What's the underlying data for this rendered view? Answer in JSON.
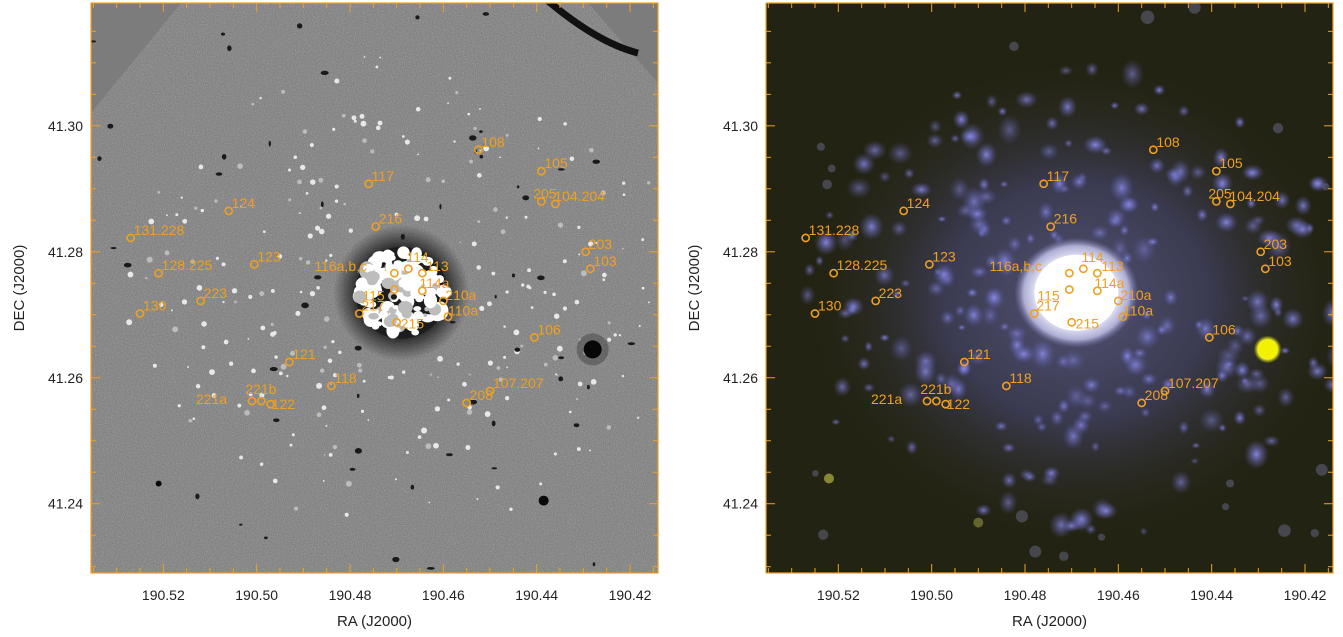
{
  "figure": {
    "xlabel": "RA (J2000)",
    "ylabel": "DEC (J2000)",
    "xticks": [
      "190.52",
      "190.50",
      "190.48",
      "190.46",
      "190.44",
      "190.42"
    ],
    "yticks": [
      "41.30",
      "41.28",
      "41.26",
      "41.24"
    ],
    "marker_color": "#f0a020",
    "frame_color": "#f0a020"
  },
  "panels": [
    {
      "name": "grayscale-difference-image",
      "style": "gray"
    },
    {
      "name": "color-composite-image",
      "style": "color"
    }
  ],
  "sources": [
    {
      "label": "108",
      "ra": 190.4525,
      "dec": 41.2962
    },
    {
      "label": "105",
      "ra": 190.439,
      "dec": 41.2928
    },
    {
      "label": "117",
      "ra": 190.476,
      "dec": 41.2908
    },
    {
      "label": "205",
      "ra": 190.439,
      "dec": 41.288
    },
    {
      "label": "104.204",
      "ra": 190.436,
      "dec": 41.2876
    },
    {
      "label": "124",
      "ra": 190.506,
      "dec": 41.2865
    },
    {
      "label": "216",
      "ra": 190.4745,
      "dec": 41.284
    },
    {
      "label": "131.228",
      "ra": 190.527,
      "dec": 41.2822
    },
    {
      "label": "203",
      "ra": 190.4295,
      "dec": 41.28
    },
    {
      "label": "123",
      "ra": 190.5005,
      "dec": 41.278
    },
    {
      "label": "103",
      "ra": 190.4285,
      "dec": 41.2773
    },
    {
      "label": "128.225",
      "ra": 190.521,
      "dec": 41.2766
    },
    {
      "label": "116a,b,c",
      "ra": 190.4705,
      "dec": 41.2766
    },
    {
      "label": "114",
      "ra": 190.4675,
      "dec": 41.2773
    },
    {
      "label": "113",
      "ra": 190.4645,
      "dec": 41.2766
    },
    {
      "label": "115",
      "ra": 190.4705,
      "dec": 41.274
    },
    {
      "label": "114a",
      "ra": 190.4645,
      "dec": 41.2738
    },
    {
      "label": "223",
      "ra": 190.512,
      "dec": 41.2722
    },
    {
      "label": "210a",
      "ra": 190.46,
      "dec": 41.2722
    },
    {
      "label": "217",
      "ra": 190.478,
      "dec": 41.2702
    },
    {
      "label": "215",
      "ra": 190.47,
      "dec": 41.2688
    },
    {
      "label": "110a",
      "ra": 190.459,
      "dec": 41.2697
    },
    {
      "label": "130",
      "ra": 190.525,
      "dec": 41.2702
    },
    {
      "label": "106",
      "ra": 190.4405,
      "dec": 41.2664
    },
    {
      "label": "121",
      "ra": 190.493,
      "dec": 41.2625
    },
    {
      "label": "118",
      "ra": 190.484,
      "dec": 41.2587
    },
    {
      "label": "107.207",
      "ra": 190.45,
      "dec": 41.2579
    },
    {
      "label": "221b",
      "ra": 190.499,
      "dec": 41.2563
    },
    {
      "label": "221a",
      "ra": 190.501,
      "dec": 41.2563
    },
    {
      "label": "122",
      "ra": 190.497,
      "dec": 41.2558
    },
    {
      "label": "208",
      "ra": 190.455,
      "dec": 41.256
    }
  ]
}
